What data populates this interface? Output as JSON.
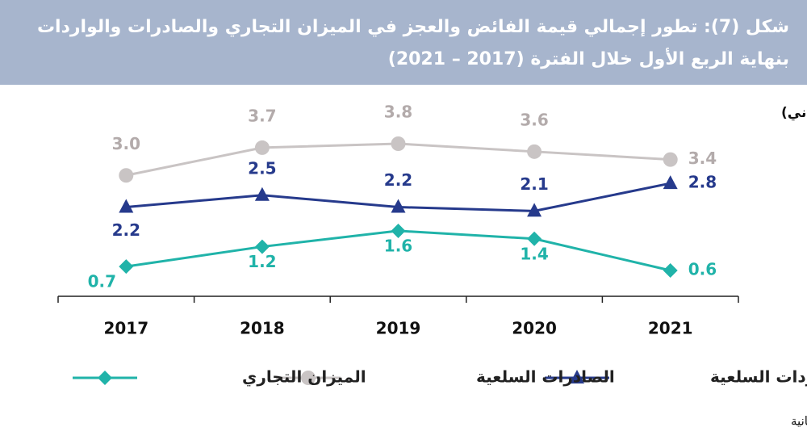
{
  "chart_data": {
    "type": "line",
    "title": "شكل (7): تطور إجمالي قيمة الفائض والعجز في الميزان التجاري والصادرات والواردات بنهاية الربع الأول خلال الفترة (2017 – 2021)",
    "unit_label": "(مليار ريال عماني)",
    "source": "المصدر: الإدارة العامة للجمارك ،شرطة عمان السلطانية",
    "categories": [
      "2017",
      "2018",
      "2019",
      "2020",
      "2021"
    ],
    "series": [
      {
        "name": "الواردات السلعية",
        "color": "#263a8c",
        "marker": "triangle",
        "values": [
          2.2,
          2.5,
          2.2,
          2.1,
          2.8
        ],
        "value_labels": [
          "2.2",
          "2.5",
          "2.2",
          "2.1",
          "2.8"
        ]
      },
      {
        "name": "الصادرات السلعية",
        "color": "#c9c4c4",
        "marker": "circle",
        "values": [
          3.0,
          3.7,
          3.8,
          3.6,
          3.4
        ],
        "value_labels": [
          "3.0",
          "3.7",
          "3.8",
          "3.6",
          "3.4"
        ]
      },
      {
        "name": "الميزان التجاري",
        "color": "#20b3a9",
        "marker": "diamond",
        "values": [
          0.7,
          1.2,
          1.6,
          1.4,
          0.6
        ],
        "value_labels": [
          "0.7",
          "1.2",
          "1.6",
          "1.4",
          "0.6"
        ]
      }
    ]
  }
}
